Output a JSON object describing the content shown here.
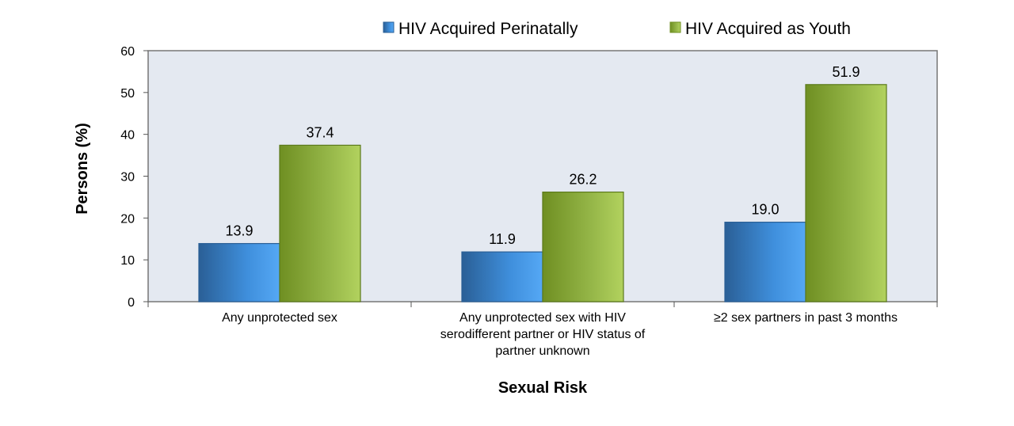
{
  "chart_data": {
    "type": "bar",
    "title": "",
    "xlabel": "Sexual Risk",
    "ylabel": "Persons (%)",
    "ylim": [
      0,
      60
    ],
    "yticks": [
      0,
      10,
      20,
      30,
      40,
      50,
      60
    ],
    "grid": false,
    "legend_position": "top",
    "categories": [
      [
        "Any unprotected sex"
      ],
      [
        "Any unprotected sex with HIV",
        "serodifferent partner or HIV status of",
        "partner unknown"
      ],
      [
        "≥2 sex partners in past 3 months"
      ]
    ],
    "series": [
      {
        "name": "HIV Acquired Perinatally",
        "values": [
          13.9,
          11.9,
          19.0
        ],
        "labels": [
          "13.9",
          "11.9",
          "19.0"
        ],
        "color": "#3a8fd9"
      },
      {
        "name": "HIV Acquired as Youth",
        "values": [
          37.4,
          26.2,
          51.9
        ],
        "labels": [
          "37.4",
          "26.2",
          "51.9"
        ],
        "color": "#8db840"
      }
    ],
    "plot_background": "#e4e9f1"
  }
}
